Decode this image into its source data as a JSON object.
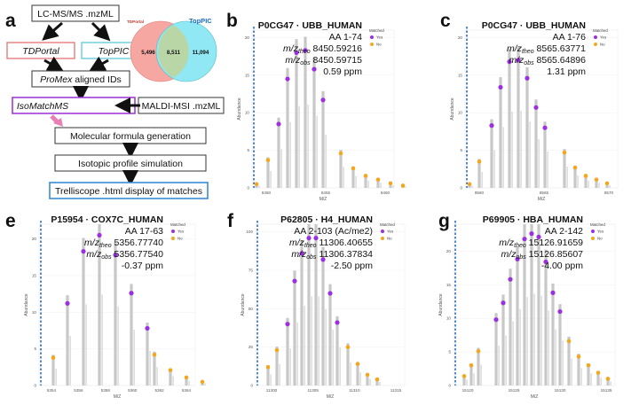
{
  "colors": {
    "matched_yes": "#9b30e0",
    "matched_no": "#f4a71d",
    "peak": "#c8c8c8",
    "dashed": "#2b6ec8",
    "tdportal_fill": "#f7a7a2",
    "toppic_fill": "#8fe8f4",
    "overlap_fill": "#b9d7a6",
    "isomatch_border": "#a23bd6",
    "trelliscope_border": "#3b8ad6",
    "tdportal_border": "#e57373",
    "toppic_border": "#5ec9dc"
  },
  "panel_a": {
    "letter": "a",
    "flow": {
      "input": "LC-MS/MS .mzML",
      "tdportal": "TDPortal",
      "toppic": "TopPIC",
      "promex_italic": "ProMex",
      "promex_rest": " aligned IDs",
      "isomatch": "IsoMatchMS",
      "maldi": "MALDI-MSI .mzML",
      "step1": "Molecular formula generation",
      "step2": "Isotopic profile simulation",
      "step3": "Trelliscope .html display of matches"
    },
    "venn": {
      "left_label": "TDPortal",
      "right_label": "TopPIC",
      "left_only": "5,496",
      "overlap": "8,511",
      "right_only": "11,094"
    }
  },
  "legend": {
    "title": "Matched",
    "yes": "Yes",
    "no": "No"
  },
  "xlabel": "M/Z",
  "ylabel": "Abundance",
  "panels": [
    {
      "letter": "b",
      "title": "P0CG47 · UBB_HUMAN",
      "aa": "AA 1-74",
      "theo": "8450.59216",
      "obs": "8450.59715",
      "ppm": "0.59 ppm",
      "chart_data": {
        "type": "scatter",
        "x_ticks": [
          "8450",
          "8455",
          "8460"
        ],
        "y_ticks": [
          "0",
          "5",
          "10",
          "15",
          "20"
        ],
        "ylim": [
          0,
          21
        ],
        "matched_yes": [
          8.5,
          14.5,
          18.0,
          18.3,
          15.8,
          11.7
        ],
        "matched_no_left": [
          0.5,
          3.7
        ],
        "matched_no_right": [
          4.6,
          2.6,
          1.6,
          1.1,
          0.6,
          0.3
        ]
      }
    },
    {
      "letter": "c",
      "title": "P0CG47 · UBB_HUMAN",
      "aa": "AA 1-76",
      "theo": "8565.63771",
      "obs": "8565.64896",
      "ppm": "1.31 ppm",
      "chart_data": {
        "type": "scatter",
        "x_ticks": [
          "8560",
          "8565",
          "8570"
        ],
        "y_ticks": [
          "0",
          "5",
          "10",
          "15",
          "20"
        ],
        "ylim": [
          0,
          21
        ],
        "matched_yes": [
          8.3,
          13.4,
          16.8,
          17.0,
          14.6,
          10.7,
          8.0
        ],
        "matched_no_left": [
          0.5,
          3.5
        ],
        "matched_no_right": [
          4.7,
          2.7,
          1.6,
          1.1,
          0.6
        ]
      }
    },
    {
      "letter": "e",
      "title": "P15954 · COX7C_HUMAN",
      "aa": "AA 17-63",
      "theo": "5356.77740",
      "obs": "5356.77540",
      "ppm": "-0.37 ppm",
      "chart_data": {
        "type": "scatter",
        "x_ticks": [
          "5354",
          "5356",
          "5358",
          "5360",
          "5362",
          "5364"
        ],
        "y_ticks": [
          "0",
          "5",
          "10",
          "15",
          "20"
        ],
        "ylim": [
          0,
          22
        ],
        "matched_yes": [
          11.2,
          18.3,
          20.5,
          17.8,
          12.6,
          7.8
        ],
        "matched_no_left": [
          3.8
        ],
        "matched_no_right": [
          4.2,
          2.1,
          1.1,
          0.5
        ]
      }
    },
    {
      "letter": "f",
      "title": "P62805 · H4_HUMAN",
      "aa": "AA 2-103 (Ac/me2)",
      "theo": "11306.40655",
      "obs": "11306.37834",
      "ppm": "-2.50 ppm",
      "chart_data": {
        "type": "scatter",
        "x_ticks": [
          "11300",
          "11305",
          "11310",
          "11315"
        ],
        "y_ticks": [
          "0",
          "25",
          "50",
          "75",
          "100"
        ],
        "ylim": [
          0,
          105
        ],
        "matched_yes": [
          40,
          68,
          86,
          96,
          96,
          82,
          60,
          41
        ],
        "matched_no_left": [
          12,
          23
        ],
        "matched_no_right": [
          25,
          14,
          7,
          4
        ]
      }
    },
    {
      "letter": "g",
      "title": "P69905 · HBA_HUMAN",
      "aa": "AA 2-142",
      "theo": "15126.91659",
      "obs": "15126.85607",
      "ppm": "-4.00 ppm",
      "chart_data": {
        "type": "scatter",
        "x_ticks": [
          "15120",
          "15125",
          "15130",
          "15135"
        ],
        "y_ticks": [
          "0",
          "5",
          "10",
          "15",
          "20"
        ],
        "ylim": [
          0,
          24
        ],
        "matched_yes": [
          9.8,
          12.3,
          15.8,
          18.8,
          21.8,
          22.6,
          22.1,
          18.4,
          13.8,
          11.0
        ],
        "matched_no_left": [
          1.4,
          3.0,
          5.1
        ],
        "matched_no_right": [
          6.6,
          4.3,
          3.0,
          1.9,
          1.0
        ]
      }
    }
  ]
}
